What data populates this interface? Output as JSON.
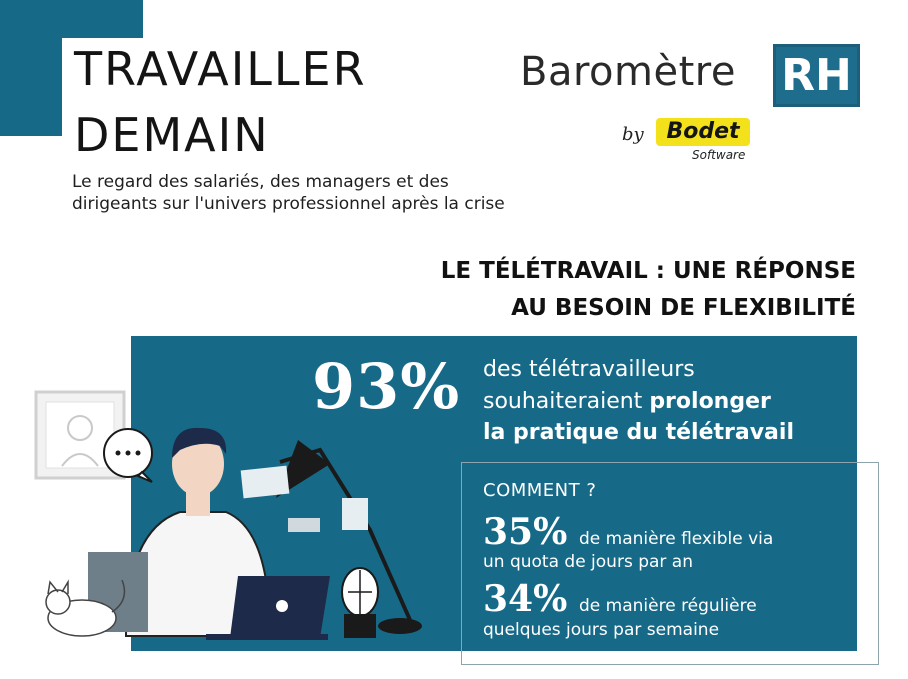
{
  "header": {
    "title_line1": "TRAVAILLER",
    "title_line2": "DEMAIN",
    "subtitle_line1": "Le regard des salariés, des managers et des",
    "subtitle_line2": "dirigeants sur l'univers professionnel après la crise"
  },
  "logo": {
    "word": "Baromètre",
    "badge": "RH",
    "by": "by",
    "brand": "Bodet",
    "software": "Software"
  },
  "section": {
    "heading_line1": "LE TÉLÉTRAVAIL : UNE RÉPONSE",
    "heading_line2": "AU BESOIN DE FLEXIBILITÉ"
  },
  "stat_main": {
    "value": "93%",
    "line1": "des télétravailleurs",
    "line2_plain": "souhaiteraient ",
    "line2_bold": "prolonger",
    "line3": "la pratique du télétravail"
  },
  "comment": {
    "label": "COMMENT ?",
    "items": [
      {
        "value": "35%",
        "line1": "de manière flexible via",
        "line2": "un quota de jours par an"
      },
      {
        "value": "34%",
        "line1": "de manière régulière",
        "line2": "quelques jours par semaine"
      }
    ]
  },
  "illustration": {
    "icons": [
      "picture-frame-icon",
      "speech-bubble-icon",
      "person-icon",
      "laptop-icon",
      "desk-lamp-icon",
      "cactus-icon",
      "cat-icon",
      "sticky-note-icon"
    ]
  },
  "colors": {
    "teal": "#166a88",
    "badge": "#1f6d8c",
    "bodet_yellow": "#f3e21b",
    "white": "#ffffff",
    "dark": "#111111"
  }
}
